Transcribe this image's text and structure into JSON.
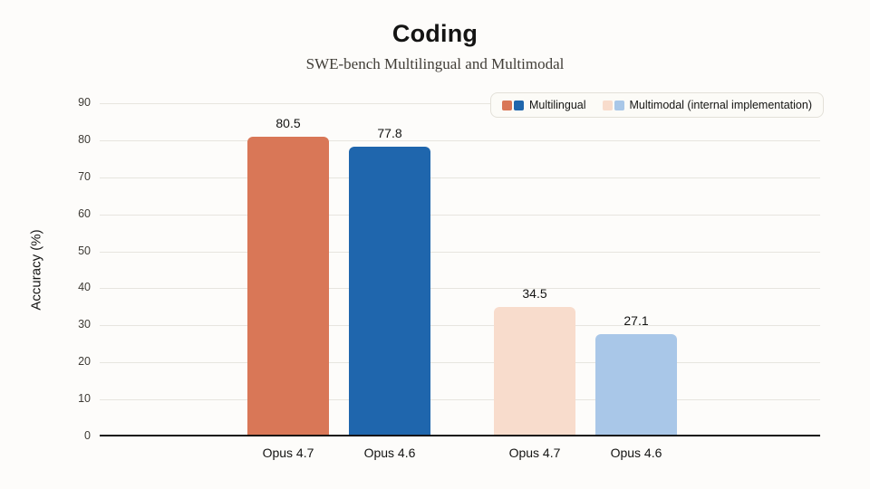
{
  "chart_data": {
    "type": "bar",
    "title": "Coding",
    "subtitle": "SWE-bench Multilingual and Multimodal",
    "xlabel": "",
    "ylabel": "Accuracy (%)",
    "ylim": [
      0,
      90
    ],
    "yticks": [
      0,
      10,
      20,
      30,
      40,
      50,
      60,
      70,
      80,
      90
    ],
    "grid": true,
    "legend_position": "top-right",
    "categories": [
      "Opus 4.7",
      "Opus 4.6",
      "Opus 4.7",
      "Opus 4.6"
    ],
    "series": [
      {
        "name": "Multilingual",
        "values": [
          80.5,
          77.8
        ],
        "colors": [
          "#D97757",
          "#1F66AD"
        ]
      },
      {
        "name": "Multimodal (internal implementation)",
        "values": [
          34.5,
          27.1
        ],
        "colors": [
          "#F8DCCC",
          "#A9C7E8"
        ]
      }
    ],
    "bars": [
      {
        "label": "Opus 4.7",
        "value": "80.5",
        "num": 80.5,
        "series": "Multilingual",
        "color": "#D97757"
      },
      {
        "label": "Opus 4.6",
        "value": "77.8",
        "num": 77.8,
        "series": "Multilingual",
        "color": "#1F66AD"
      },
      {
        "label": "Opus 4.7",
        "value": "34.5",
        "num": 34.5,
        "series": "Multimodal (internal implementation)",
        "color": "#F8DCCC"
      },
      {
        "label": "Opus 4.6",
        "value": "27.1",
        "num": 27.1,
        "series": "Multimodal (internal implementation)",
        "color": "#A9C7E8"
      }
    ],
    "legend": [
      {
        "label": "Multilingual",
        "swatches": [
          "#D97757",
          "#1F66AD"
        ]
      },
      {
        "label": "Multimodal (internal implementation)",
        "swatches": [
          "#F8DCCC",
          "#A9C7E8"
        ]
      }
    ],
    "colors": {
      "background": "#fdfcfa",
      "gridline": "#e7e5df",
      "axis": "#141413"
    }
  }
}
